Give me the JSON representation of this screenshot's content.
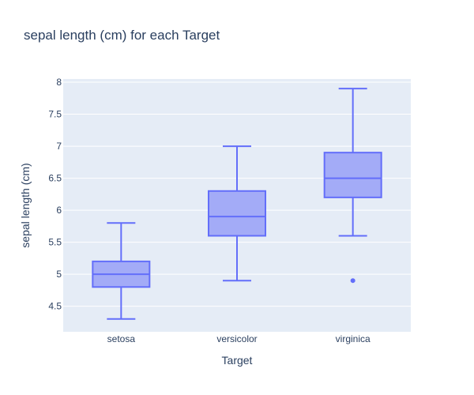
{
  "chart_data": {
    "type": "box",
    "title": "sepal length (cm) for each Target",
    "xlabel": "Target",
    "ylabel": "sepal length (cm)",
    "ylim": [
      4.1,
      8.05
    ],
    "yticks": [
      4.5,
      5,
      5.5,
      6,
      6.5,
      7,
      7.5,
      8
    ],
    "ytick_labels": [
      "4.5",
      "5",
      "5.5",
      "6",
      "6.5",
      "7",
      "7.5",
      "8"
    ],
    "grid": true,
    "categories": [
      "setosa",
      "versicolor",
      "virginica"
    ],
    "boxes": [
      {
        "category": "setosa",
        "min": 4.3,
        "q1": 4.8,
        "median": 5.0,
        "q3": 5.2,
        "max": 5.8,
        "outliers": []
      },
      {
        "category": "versicolor",
        "min": 4.9,
        "q1": 5.6,
        "median": 5.9,
        "q3": 6.3,
        "max": 7.0,
        "outliers": []
      },
      {
        "category": "virginica",
        "min": 5.6,
        "q1": 6.2,
        "median": 6.5,
        "q3": 6.9,
        "max": 7.9,
        "outliers": [
          4.9
        ]
      }
    ],
    "colors": {
      "plot_bg": "#e5ecf6",
      "grid": "#ffffff",
      "box_fill": "#a3abf7",
      "box_line": "#636efa",
      "text": "#2a3f5f"
    }
  }
}
